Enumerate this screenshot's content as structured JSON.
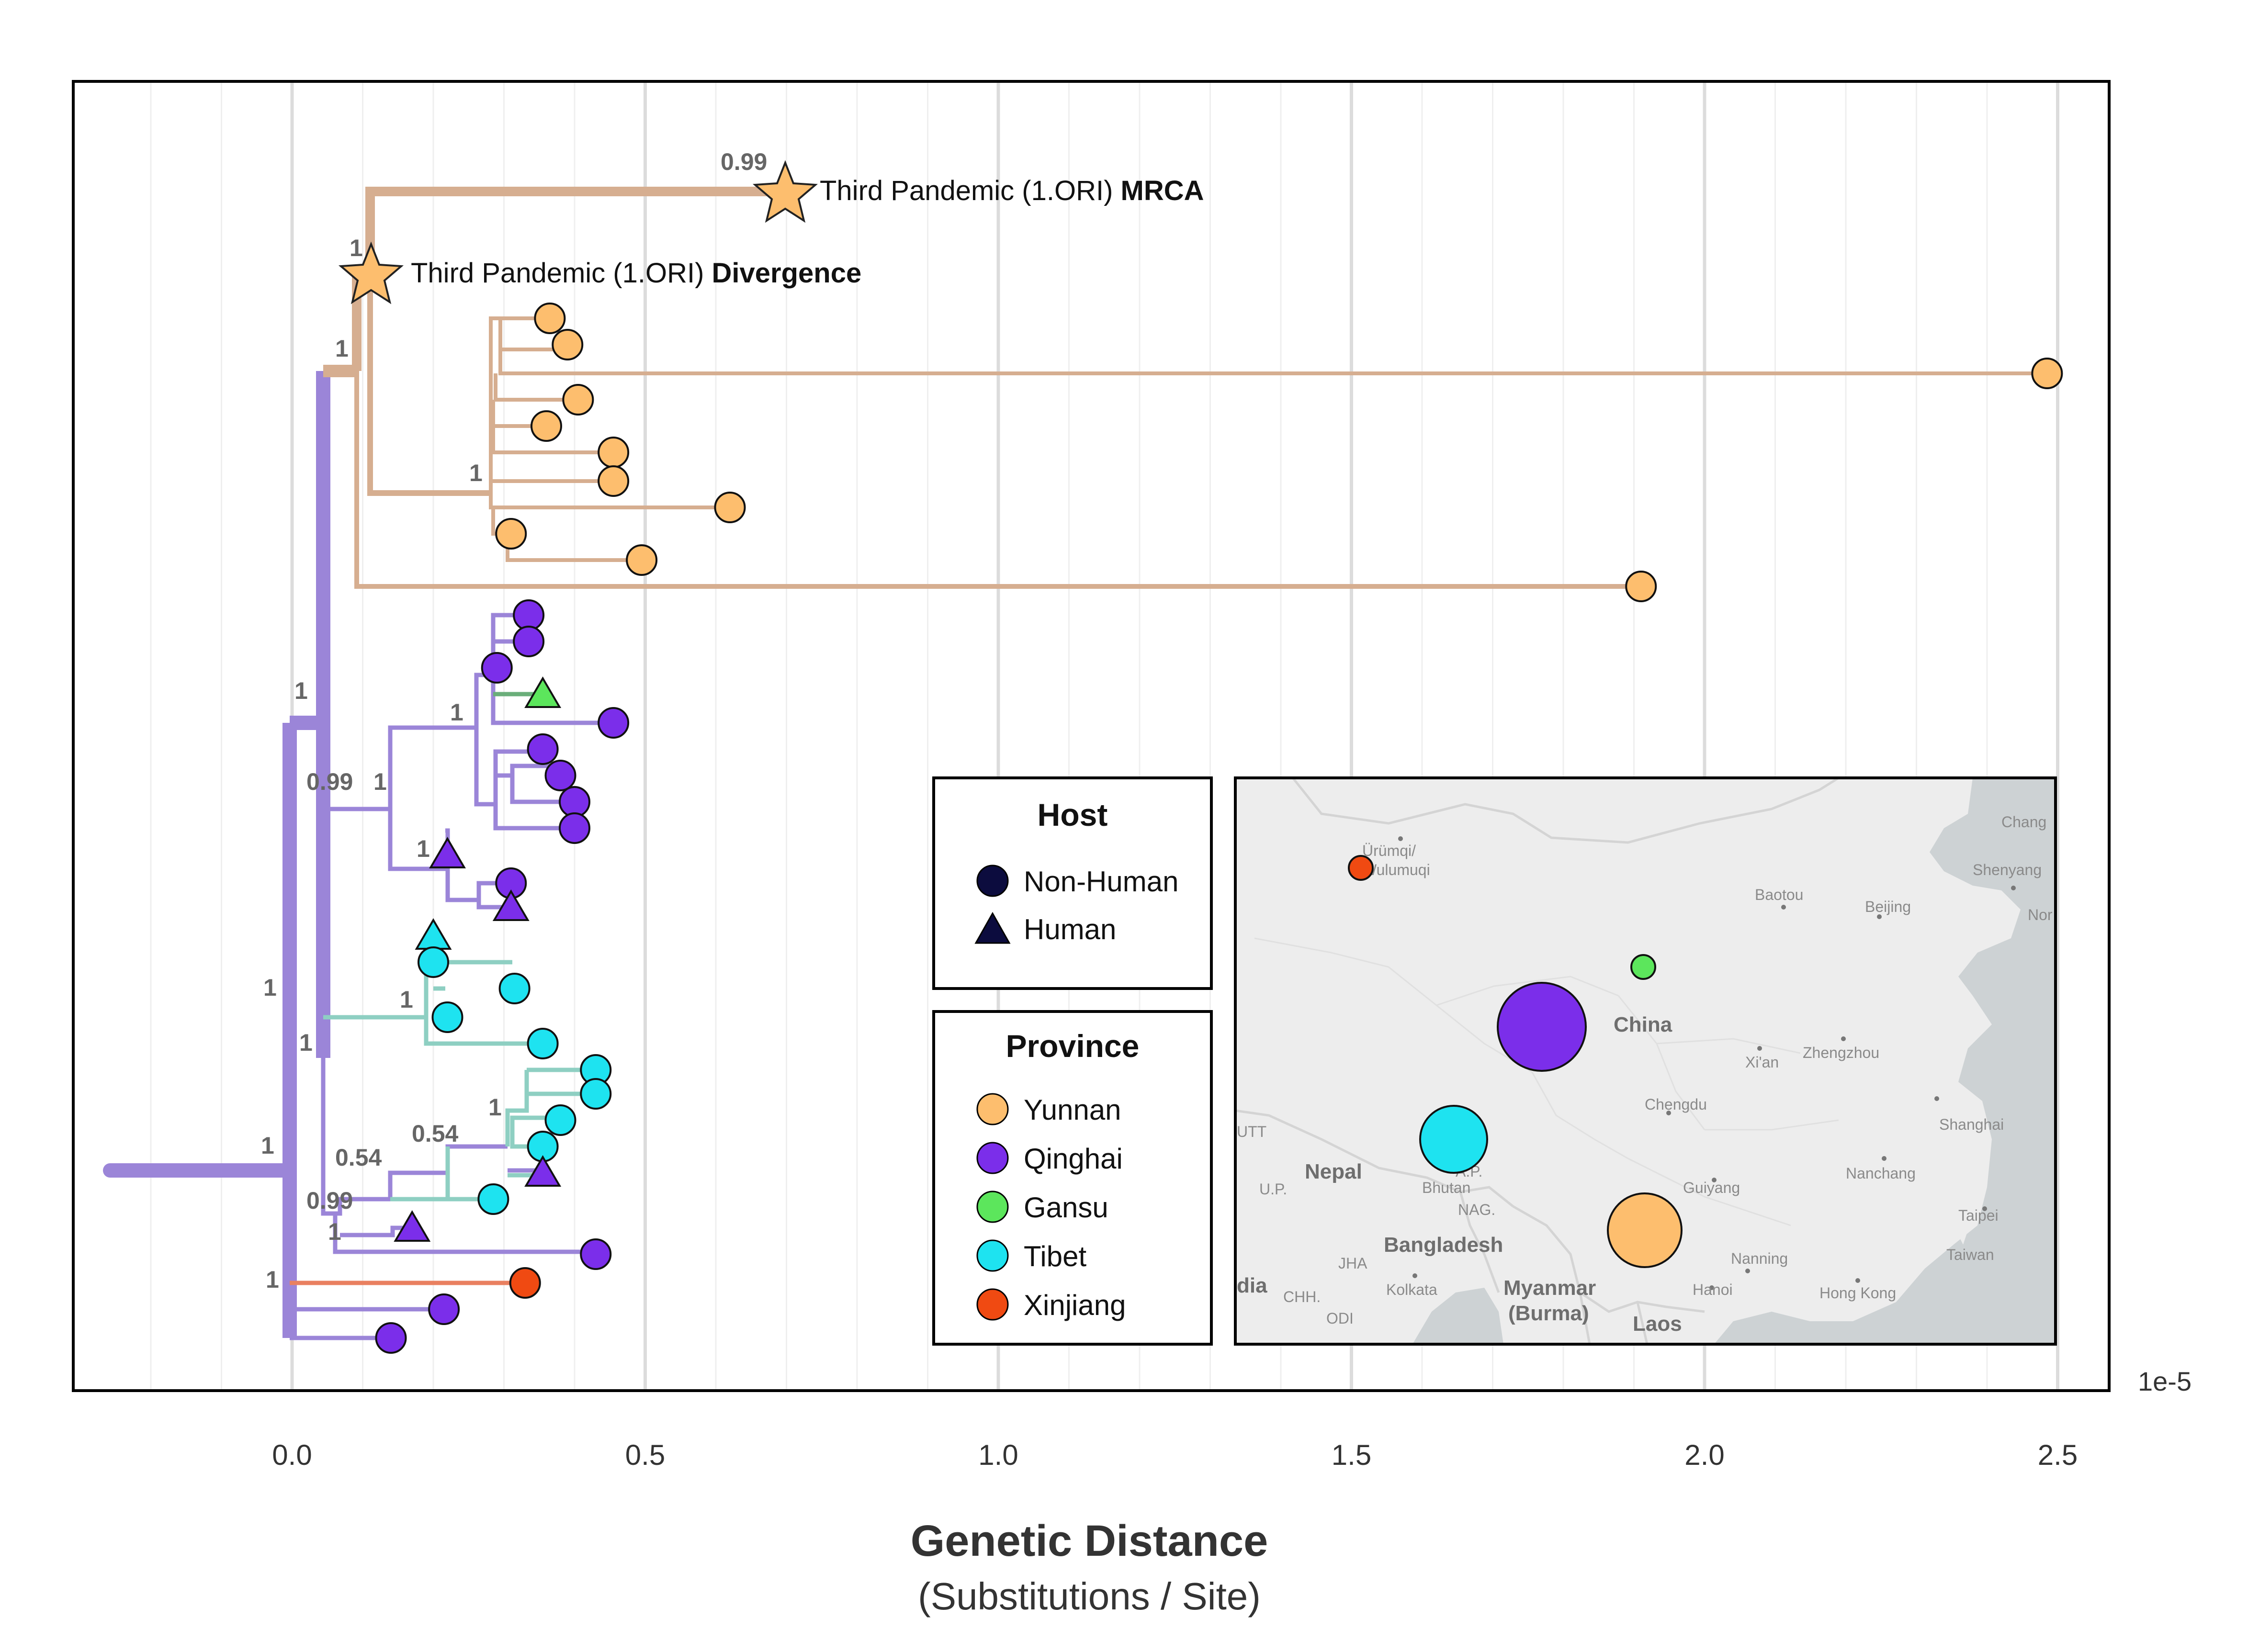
{
  "chart_data": {
    "type": "scatter",
    "subtype": "phylogenetic-tree",
    "xlabel": "Genetic Distance",
    "xlabel_sub": "(Substitutions / Site)",
    "x_unit": "1e-5",
    "x_ticks": [
      "0.0",
      "0.5",
      "1.0",
      "1.5",
      "2.0",
      "2.5"
    ],
    "xlim": [
      -0.26,
      2.57
    ],
    "grid": true,
    "colors": {
      "Yunnan": "#FDBE6E",
      "Qinghai": "#7B2EEA",
      "Gansu": "#5CE65C",
      "Tibet": "#1EE3F0",
      "Xinjiang": "#F04A12",
      "backbone": "#9B85D8",
      "yunnan_branch": "#D6AE90",
      "tibet_branch": "#8ECFC2",
      "xinjiang_branch": "#E98060",
      "gansu_branch": "#6AAE7A"
    },
    "annotations": [
      {
        "label": "Third Pandemic (1.ORI) ",
        "bold": "MRCA",
        "x": 0.7,
        "support": "0.99"
      },
      {
        "label": "Third Pandemic (1.ORI) ",
        "bold": "Divergence",
        "x": 0.115,
        "support": "1"
      }
    ],
    "support_values": [
      "0.99",
      "1",
      "1",
      "1",
      "1",
      "0.99",
      "1",
      "1",
      "1",
      "1",
      "1",
      "1",
      "0.54",
      "0.54",
      "1",
      "0.99",
      "1",
      "1",
      "1"
    ],
    "tips": [
      {
        "province": "Yunnan",
        "host": "Non-Human",
        "x": 0.365
      },
      {
        "province": "Yunnan",
        "host": "Non-Human",
        "x": 0.39
      },
      {
        "province": "Yunnan",
        "host": "Non-Human",
        "x": 2.485
      },
      {
        "province": "Yunnan",
        "host": "Non-Human",
        "x": 0.405
      },
      {
        "province": "Yunnan",
        "host": "Non-Human",
        "x": 0.36
      },
      {
        "province": "Yunnan",
        "host": "Non-Human",
        "x": 0.455
      },
      {
        "province": "Yunnan",
        "host": "Non-Human",
        "x": 0.455
      },
      {
        "province": "Yunnan",
        "host": "Non-Human",
        "x": 0.62
      },
      {
        "province": "Yunnan",
        "host": "Non-Human",
        "x": 0.31
      },
      {
        "province": "Yunnan",
        "host": "Non-Human",
        "x": 0.495
      },
      {
        "province": "Yunnan",
        "host": "Non-Human",
        "x": 1.91
      },
      {
        "province": "Qinghai",
        "host": "Non-Human",
        "x": 0.335
      },
      {
        "province": "Qinghai",
        "host": "Non-Human",
        "x": 0.335
      },
      {
        "province": "Qinghai",
        "host": "Non-Human",
        "x": 0.29
      },
      {
        "province": "Gansu",
        "host": "Human",
        "x": 0.355
      },
      {
        "province": "Qinghai",
        "host": "Non-Human",
        "x": 0.455
      },
      {
        "province": "Qinghai",
        "host": "Non-Human",
        "x": 0.355
      },
      {
        "province": "Qinghai",
        "host": "Non-Human",
        "x": 0.38
      },
      {
        "province": "Qinghai",
        "host": "Non-Human",
        "x": 0.4
      },
      {
        "province": "Qinghai",
        "host": "Non-Human",
        "x": 0.4
      },
      {
        "province": "Qinghai",
        "host": "Human",
        "x": 0.22
      },
      {
        "province": "Qinghai",
        "host": "Non-Human",
        "x": 0.31
      },
      {
        "province": "Qinghai",
        "host": "Human",
        "x": 0.31
      },
      {
        "province": "Tibet",
        "host": "Human",
        "x": 0.2
      },
      {
        "province": "Tibet",
        "host": "Non-Human",
        "x": 0.2
      },
      {
        "province": "Tibet",
        "host": "Non-Human",
        "x": 0.315
      },
      {
        "province": "Tibet",
        "host": "Non-Human",
        "x": 0.22
      },
      {
        "province": "Tibet",
        "host": "Non-Human",
        "x": 0.355
      },
      {
        "province": "Tibet",
        "host": "Non-Human",
        "x": 0.43
      },
      {
        "province": "Tibet",
        "host": "Non-Human",
        "x": 0.43
      },
      {
        "province": "Tibet",
        "host": "Non-Human",
        "x": 0.38
      },
      {
        "province": "Tibet",
        "host": "Non-Human",
        "x": 0.355
      },
      {
        "province": "Qinghai",
        "host": "Human",
        "x": 0.355
      },
      {
        "province": "Tibet",
        "host": "Non-Human",
        "x": 0.285
      },
      {
        "province": "Qinghai",
        "host": "Human",
        "x": 0.17
      },
      {
        "province": "Qinghai",
        "host": "Non-Human",
        "x": 0.43
      },
      {
        "province": "Xinjiang",
        "host": "Non-Human",
        "x": 0.33
      },
      {
        "province": "Qinghai",
        "host": "Non-Human",
        "x": 0.215
      },
      {
        "province": "Qinghai",
        "host": "Non-Human",
        "x": 0.14
      }
    ]
  },
  "legend_host": {
    "title": "Host",
    "items": [
      {
        "label": "Non-Human",
        "shape": "circle"
      },
      {
        "label": "Human",
        "shape": "triangle"
      }
    ]
  },
  "legend_province": {
    "title": "Province",
    "items": [
      {
        "label": "Yunnan",
        "color": "#FDBE6E"
      },
      {
        "label": "Qinghai",
        "color": "#7B2EEA"
      },
      {
        "label": "Gansu",
        "color": "#5CE65C"
      },
      {
        "label": "Tibet",
        "color": "#1EE3F0"
      },
      {
        "label": "Xinjiang",
        "color": "#F04A12"
      }
    ]
  },
  "map": {
    "labels": {
      "urumqi": "Ürümqi/",
      "wulumuqi": "Wulumuqi",
      "baotou": "Baotou",
      "beijing": "Beijing",
      "changchun": "Chang",
      "shenyang": "Shenyang",
      "china": "China",
      "xian": "Xi'an",
      "zhengzhou": "Zhengzhou",
      "chengdu": "Chengdu",
      "shanghai": "Shanghai",
      "nepal": "Nepal",
      "bhutan": "Bhutan",
      "guiyang": "Guiyang",
      "nanchang": "Nanchang",
      "taipei": "Taipei",
      "taiwan": "Taiwan",
      "bangladesh": "Bangladesh",
      "nanning": "Nanning",
      "kolkata": "Kolkata",
      "myanmar": "Myanmar",
      "burma": "(Burma)",
      "hanoi": "Hanoi",
      "hongkong": "Hong Kong",
      "laos": "Laos",
      "india": "dia",
      "jha": "JHA",
      "chh": "CHH.",
      "odi": "ODI",
      "utt": "UTT",
      "up": "U.P.",
      "nag": "NAG.",
      "ap": "A.P.",
      "nor": "Nor"
    },
    "bubbles": [
      {
        "province": "Xinjiang",
        "relative_size": 1
      },
      {
        "province": "Gansu",
        "relative_size": 1
      },
      {
        "province": "Qinghai",
        "relative_size": 16
      },
      {
        "province": "Tibet",
        "relative_size": 11
      },
      {
        "province": "Yunnan",
        "relative_size": 12
      }
    ]
  }
}
